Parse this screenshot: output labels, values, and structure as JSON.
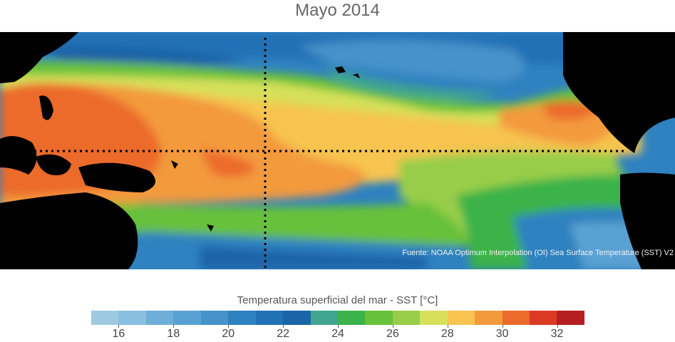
{
  "title": "Mayo 2014",
  "source": "Fuente: NOAA Optimum Interpolation (OI) Sea Surface Temperature (SST) V2",
  "legend": {
    "title": "Temperatura superficial del mar - SST  [°C]",
    "min": 15,
    "max": 33,
    "tick_labels": [
      "16",
      "18",
      "20",
      "22",
      "24",
      "26",
      "28",
      "30",
      "32"
    ],
    "tick_values": [
      16,
      18,
      20,
      22,
      24,
      26,
      28,
      30,
      32
    ],
    "bins": [
      {
        "from": 15,
        "to": 16,
        "color": "#9ecae1"
      },
      {
        "from": 16,
        "to": 17,
        "color": "#8bbfe0"
      },
      {
        "from": 17,
        "to": 18,
        "color": "#6faed9"
      },
      {
        "from": 18,
        "to": 19,
        "color": "#5aa1d3"
      },
      {
        "from": 19,
        "to": 20,
        "color": "#4692cb"
      },
      {
        "from": 20,
        "to": 21,
        "color": "#2f82c0"
      },
      {
        "from": 21,
        "to": 22,
        "color": "#2171b5"
      },
      {
        "from": 22,
        "to": 23,
        "color": "#1a64a8"
      },
      {
        "from": 23,
        "to": 24,
        "color": "#41a58f"
      },
      {
        "from": 24,
        "to": 25,
        "color": "#3bb34a"
      },
      {
        "from": 25,
        "to": 26,
        "color": "#67c13b"
      },
      {
        "from": 26,
        "to": 27,
        "color": "#98cd4a"
      },
      {
        "from": 27,
        "to": 28,
        "color": "#d6e05a"
      },
      {
        "from": 28,
        "to": 29,
        "color": "#f6c44f"
      },
      {
        "from": 29,
        "to": 30,
        "color": "#f39a3d"
      },
      {
        "from": 30,
        "to": 31,
        "color": "#ec6a2b"
      },
      {
        "from": 31,
        "to": 32,
        "color": "#dc3a24"
      },
      {
        "from": 32,
        "to": 33,
        "color": "#b51f22"
      }
    ]
  },
  "map": {
    "land_color": "#000000",
    "reference_lines": [
      "equator",
      "dateline"
    ],
    "reference_line_style": "dotted"
  }
}
